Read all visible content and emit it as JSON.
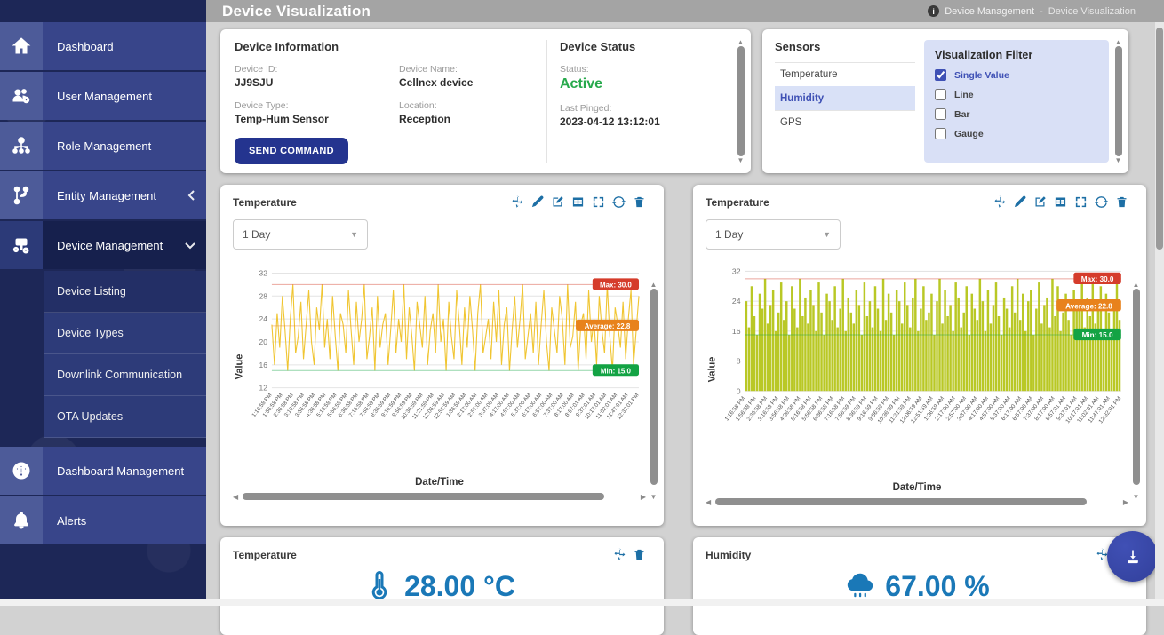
{
  "header": {
    "title": "Device Visualization",
    "breadcrumb": {
      "section": "Device Management",
      "separator": "-",
      "page": "Device Visualization"
    }
  },
  "sidebar": {
    "items": [
      {
        "label": "Dashboard",
        "icon": "home-icon"
      },
      {
        "label": "User Management",
        "icon": "users-icon"
      },
      {
        "label": "Role Management",
        "icon": "role-hierarchy-icon"
      },
      {
        "label": "Entity Management",
        "icon": "entity-branch-icon",
        "chevron": "collapsed"
      },
      {
        "label": "Device Management",
        "icon": "device-gear-icon",
        "chevron": "expanded"
      }
    ],
    "submenu": [
      {
        "label": "Device Listing"
      },
      {
        "label": "Device Types"
      },
      {
        "label": "Downlink Communication"
      },
      {
        "label": "OTA Updates"
      }
    ],
    "items_bottom": [
      {
        "label": "Dashboard Management",
        "icon": "gauge-icon"
      },
      {
        "label": "Alerts",
        "icon": "bell-icon"
      }
    ]
  },
  "device_info": {
    "title": "Device Information",
    "fields": [
      {
        "label": "Device ID:",
        "value": "JJ9SJU"
      },
      {
        "label": "Device Name:",
        "value": "Cellnex device"
      },
      {
        "label": "Device Type:",
        "value": "Temp-Hum Sensor"
      },
      {
        "label": "Location:",
        "value": "Reception"
      }
    ],
    "send_command_label": "SEND COMMAND"
  },
  "device_status": {
    "title": "Device Status",
    "status_label": "Status:",
    "status_value": "Active",
    "status_color": "#27a94c",
    "last_pinged_label": "Last Pinged:",
    "last_pinged_value": "2023-04-12 13:12:01"
  },
  "sensors": {
    "title": "Sensors",
    "items": [
      {
        "label": "Temperature",
        "selected": false
      },
      {
        "label": "Humidity",
        "selected": true
      },
      {
        "label": "GPS",
        "selected": false
      }
    ]
  },
  "viz_filter": {
    "title": "Visualization Filter",
    "options": [
      {
        "label": "Single Value",
        "checked": true
      },
      {
        "label": "Line",
        "checked": false
      },
      {
        "label": "Bar",
        "checked": false
      },
      {
        "label": "Gauge",
        "checked": false
      }
    ]
  },
  "chart_toolbar_icons": [
    "move-icon",
    "pen-icon",
    "edit-icon",
    "table-icon",
    "fullscreen-icon",
    "refresh-icon",
    "trash-icon"
  ],
  "chart_data": [
    {
      "type": "line",
      "title": "Temperature",
      "range_selector": "1 Day",
      "xlabel": "Date/Time",
      "ylabel": "Value",
      "ylim": [
        12,
        33
      ],
      "yticks": [
        12,
        16,
        20,
        24,
        28,
        32
      ],
      "grid": true,
      "color": "#f0c531",
      "stats": {
        "max": 30,
        "avg": 22.8,
        "min": 15
      },
      "badges": {
        "max": "Max: 30.0",
        "avg": "Average: 22.8",
        "min": "Min: 15.0"
      },
      "badge_colors": {
        "max": "#d53c2b",
        "avg": "#e8821c",
        "min": "#13a344"
      },
      "x_categories": [
        "1:16:58 PM",
        "1:56:58 PM",
        "2:36:58 PM",
        "3:16:58 PM",
        "3:56:58 PM",
        "4:36:58 PM",
        "5:16:58 PM",
        "5:56:58 PM",
        "6:36:58 PM",
        "7:16:58 PM",
        "7:56:59 PM",
        "8:36:59 PM",
        "9:16:59 PM",
        "9:56:59 PM",
        "10:36:59 PM",
        "11:21:59 PM",
        "12:06:59 AM",
        "12:51:59 AM",
        "1:36:59 AM",
        "2:17:00 AM",
        "2:57:00 AM",
        "3:37:00 AM",
        "4:17:00 AM",
        "4:57:00 AM",
        "5:37:00 AM",
        "6:17:00 AM",
        "6:57:00 AM",
        "7:37:00 AM",
        "8:17:00 AM",
        "8:57:01 AM",
        "9:37:01 AM",
        "10:17:01 AM",
        "11:02:01 AM",
        "11:47:01 AM",
        "12:32:01 PM"
      ],
      "values": [
        23,
        16,
        25,
        19,
        28,
        22,
        15,
        24,
        30,
        18,
        21,
        27,
        17,
        23,
        29,
        20,
        16,
        26,
        22,
        30,
        19,
        24,
        17,
        28,
        21,
        15,
        25,
        23,
        18,
        29,
        22,
        16,
        27,
        20,
        24,
        30,
        17,
        21,
        26,
        15,
        28,
        19,
        23,
        25,
        16,
        22,
        29,
        18,
        24,
        20,
        30,
        17,
        26,
        21,
        15,
        27,
        23,
        19,
        28,
        16,
        22,
        25,
        18,
        30,
        20,
        24,
        15,
        27,
        21,
        17,
        29,
        23,
        16,
        26,
        19,
        28,
        22,
        15,
        25,
        30,
        18,
        21,
        24,
        17,
        27,
        20,
        29,
        16,
        23,
        26,
        15,
        22,
        28,
        19,
        24,
        30,
        17,
        21,
        25,
        18,
        27,
        16,
        23,
        29,
        20,
        15,
        26,
        22,
        18,
        28,
        24,
        16,
        30,
        19,
        21,
        27,
        15,
        23,
        25,
        17,
        29,
        20,
        24,
        16,
        28,
        22,
        18,
        30,
        21,
        15,
        26,
        23,
        19,
        27,
        17,
        24,
        29,
        16,
        22,
        28
      ]
    },
    {
      "type": "bar",
      "title": "Temperature",
      "range_selector": "1 Day",
      "xlabel": "Date/Time",
      "ylabel": "Value",
      "ylim": [
        0,
        33
      ],
      "yticks": [
        0,
        8,
        16,
        24,
        32
      ],
      "grid": true,
      "color": "#b9c825",
      "stats": {
        "max": 30,
        "avg": 22.8,
        "min": 15
      },
      "badges": {
        "max": "Max: 30.0",
        "avg": "Average: 22.8",
        "min": "Min: 15.0"
      },
      "badge_colors": {
        "max": "#d53c2b",
        "avg": "#e8821c",
        "min": "#13a344"
      },
      "x_categories": [
        "1:16:58 PM",
        "1:56:58 PM",
        "2:36:58 PM",
        "3:16:58 PM",
        "3:56:58 PM",
        "4:36:58 PM",
        "5:16:58 PM",
        "5:56:58 PM",
        "6:36:58 PM",
        "7:16:58 PM",
        "7:56:59 PM",
        "8:36:59 PM",
        "9:16:59 PM",
        "9:56:59 PM",
        "10:36:59 PM",
        "11:21:59 PM",
        "12:06:59 AM",
        "12:51:59 AM",
        "1:36:59 AM",
        "2:17:00 AM",
        "2:57:00 AM",
        "3:37:00 AM",
        "4:17:00 AM",
        "4:57:00 AM",
        "5:37:00 AM",
        "6:17:00 AM",
        "6:57:00 AM",
        "7:37:00 AM",
        "8:17:00 AM",
        "8:57:01 AM",
        "9:37:01 AM",
        "10:17:01 AM",
        "11:02:01 AM",
        "11:47:01 AM",
        "12:32:01 PM"
      ],
      "values": [
        24,
        17,
        28,
        20,
        15,
        26,
        22,
        30,
        18,
        23,
        27,
        16,
        21,
        29,
        19,
        24,
        15,
        28,
        22,
        17,
        30,
        20,
        25,
        18,
        27,
        23,
        16,
        29,
        21,
        15,
        26,
        24,
        19,
        28,
        17,
        22,
        30,
        16,
        25,
        21,
        18,
        27,
        23,
        15,
        29,
        20,
        24,
        17,
        28,
        22,
        16,
        30,
        19,
        26,
        21,
        15,
        27,
        24,
        18,
        29,
        23,
        17,
        25,
        30,
        16,
        22,
        28,
        19,
        21,
        26,
        15,
        24,
        30,
        18,
        27,
        20,
        23,
        16,
        29,
        25,
        17,
        21,
        28,
        15,
        26,
        22,
        19,
        30,
        24,
        16,
        27,
        18,
        23,
        29,
        20,
        15,
        25,
        22,
        17,
        28,
        21,
        30,
        19,
        26,
        16,
        24,
        27,
        15,
        22,
        29,
        18,
        23,
        25,
        17,
        30,
        20,
        28,
        16,
        21,
        26,
        19,
        15,
        27,
        24,
        22,
        29,
        17,
        25,
        20,
        30,
        18,
        23,
        28,
        16,
        26,
        21,
        15,
        24,
        29,
        19
      ]
    }
  ],
  "value_cards": [
    {
      "title": "Temperature",
      "icon": "thermometer-icon",
      "value": "28.00 °C"
    },
    {
      "title": "Humidity",
      "icon": "cloud-rain-icon",
      "value": "67.00 %"
    }
  ],
  "fab": {
    "icon": "download-icon",
    "color": "#3848a5"
  }
}
